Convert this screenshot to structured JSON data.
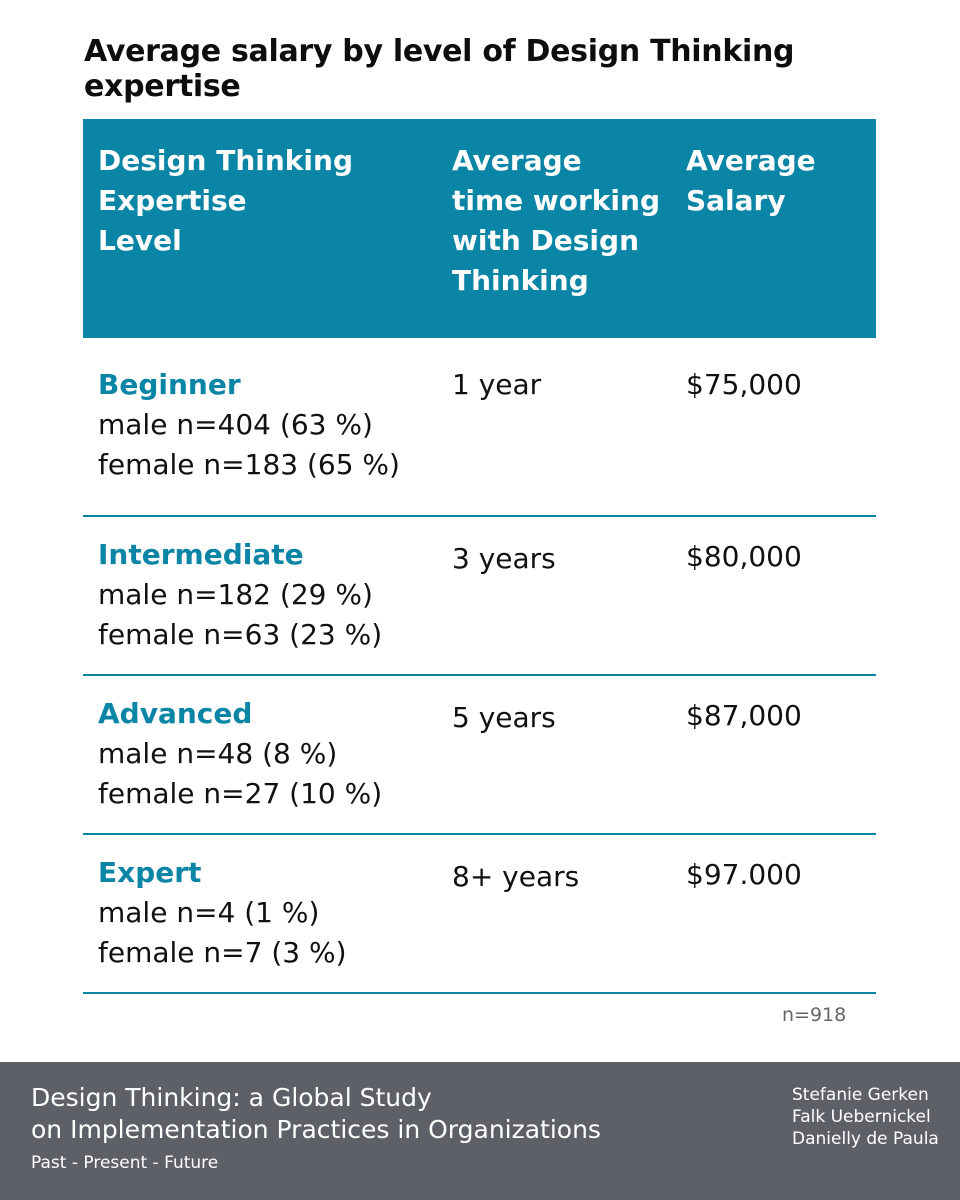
{
  "title": "Average salary by level of Design Thinking expertise",
  "table": {
    "headers": [
      "Design Thinking\nExpertise\nLevel",
      "Average\ntime working\nwith Design\nThinking",
      "Average\nSalary"
    ],
    "rows": [
      {
        "level": "Beginner",
        "male": "male n=404 (63 %)",
        "female": "female n=183 (65 %)",
        "time": "1 year",
        "salary": "$75,000"
      },
      {
        "level": "Intermediate",
        "male": "male n=182 (29 %)",
        "female": "female n=63 (23 %)",
        "time": "3 years",
        "salary": "$80,000"
      },
      {
        "level": "Advanced",
        "male": "male n=48 (8 %)",
        "female": "female n=27 (10 %)",
        "time": "5 years",
        "salary": "$87,000"
      },
      {
        "level": "Expert",
        "male": "male n=4 (1 %)",
        "female": "female n=7 (3 %)",
        "time": "8+ years",
        "salary": "$97.000"
      }
    ],
    "n_total": "n=918",
    "accent_color": "#0a85a6"
  },
  "footer": {
    "title": "Design Thinking: a Global Study\non Implementation Practices in Organizations",
    "subtitle": "Past - Present - Future",
    "authors": [
      "Stefanie Gerken",
      "Falk Uebernickel",
      "Danielly de Paula"
    ],
    "background_color": "#5d6167"
  }
}
